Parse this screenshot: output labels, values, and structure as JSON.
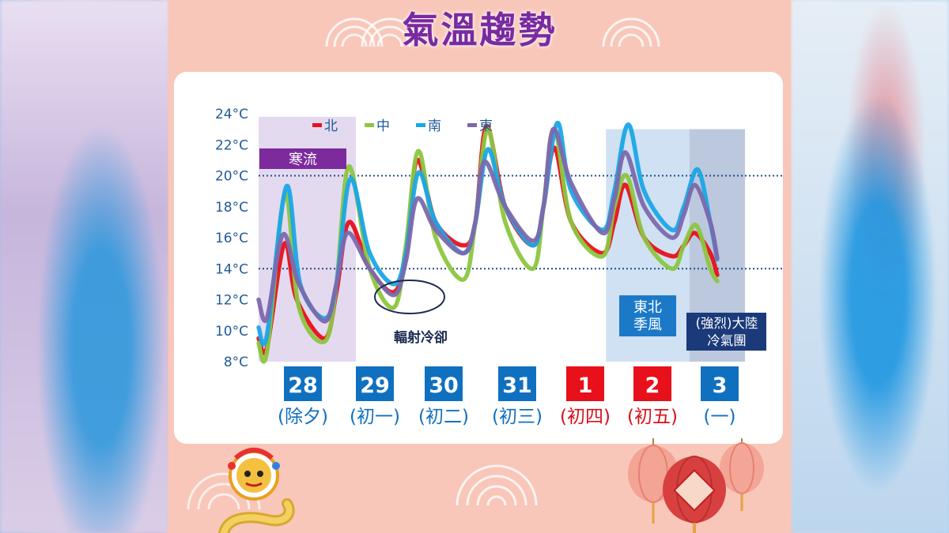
{
  "poster": {
    "title": "氣溫趨勢"
  },
  "colors": {
    "north": "#e8101a",
    "central": "#8cc63f",
    "south": "#1aa7e6",
    "east": "#7c68ad",
    "day_box_normal": "#1070c0",
    "day_box_holiday": "#e8101a",
    "lunar_normal": "#1070c0",
    "lunar_holiday": "#d8101a",
    "cold_wave_band": "#e4daf0",
    "monsoon_band": "#cfe1f2",
    "continental_band": "#bcc8de",
    "ref_line": "#1f4e8c"
  },
  "chart_data": {
    "type": "line",
    "yticks": [
      "8°C",
      "10°C",
      "12°C",
      "14°C",
      "16°C",
      "18°C",
      "20°C",
      "22°C",
      "24°C"
    ],
    "ylim": [
      8,
      24
    ],
    "xlim": [
      0,
      7
    ],
    "reference_lines": [
      20,
      14
    ],
    "legend": [
      "北",
      "中",
      "南",
      "東"
    ],
    "days": [
      {
        "date": "28",
        "lunar": "(除夕)",
        "holiday": false
      },
      {
        "date": "29",
        "lunar": "(初一)",
        "holiday": false
      },
      {
        "date": "30",
        "lunar": "(初二)",
        "holiday": false
      },
      {
        "date": "31",
        "lunar": "(初三)",
        "holiday": false
      },
      {
        "date": "1",
        "lunar": "(初四)",
        "holiday": true
      },
      {
        "date": "2",
        "lunar": "(初五)",
        "holiday": true
      },
      {
        "date": "3",
        "lunar": "(一)",
        "holiday": false
      }
    ],
    "series": [
      {
        "name": "北",
        "key": "north",
        "points": [
          [
            0,
            9.5
          ],
          [
            0.12,
            8.9
          ],
          [
            0.37,
            15.6
          ],
          [
            0.55,
            12
          ],
          [
            0.95,
            9.5
          ],
          [
            1.12,
            12.5
          ],
          [
            1.3,
            17
          ],
          [
            1.6,
            14
          ],
          [
            1.95,
            12.5
          ],
          [
            2.12,
            15
          ],
          [
            2.28,
            21
          ],
          [
            2.55,
            17
          ],
          [
            2.95,
            15.5
          ],
          [
            3.12,
            17
          ],
          [
            3.28,
            23.2
          ],
          [
            3.55,
            18
          ],
          [
            3.95,
            15.5
          ],
          [
            4.1,
            18
          ],
          [
            4.26,
            21.8
          ],
          [
            4.5,
            17
          ],
          [
            4.95,
            15
          ],
          [
            5.12,
            17
          ],
          [
            5.28,
            19.4
          ],
          [
            5.55,
            16
          ],
          [
            5.95,
            14.8
          ],
          [
            6.12,
            15.5
          ],
          [
            6.28,
            16.3
          ],
          [
            6.5,
            15
          ],
          [
            6.6,
            13.6
          ]
        ]
      },
      {
        "name": "中",
        "key": "central",
        "points": [
          [
            0,
            9.2
          ],
          [
            0.12,
            8.6
          ],
          [
            0.38,
            18.8
          ],
          [
            0.58,
            11.5
          ],
          [
            0.95,
            9.3
          ],
          [
            1.12,
            13
          ],
          [
            1.3,
            20.6
          ],
          [
            1.6,
            14
          ],
          [
            1.95,
            11.5
          ],
          [
            2.12,
            15.5
          ],
          [
            2.3,
            21.6
          ],
          [
            2.55,
            16
          ],
          [
            2.95,
            13.3
          ],
          [
            3.12,
            17
          ],
          [
            3.3,
            23
          ],
          [
            3.55,
            17
          ],
          [
            3.95,
            14
          ],
          [
            4.1,
            18
          ],
          [
            4.26,
            23
          ],
          [
            4.5,
            17
          ],
          [
            4.95,
            14.8
          ],
          [
            5.12,
            18
          ],
          [
            5.3,
            20
          ],
          [
            5.55,
            16
          ],
          [
            5.95,
            14
          ],
          [
            6.12,
            15.5
          ],
          [
            6.3,
            16.8
          ],
          [
            6.5,
            14
          ],
          [
            6.6,
            13.2
          ]
        ]
      },
      {
        "name": "南",
        "key": "south",
        "points": [
          [
            0,
            10.2
          ],
          [
            0.12,
            9.7
          ],
          [
            0.4,
            19.3
          ],
          [
            0.6,
            13
          ],
          [
            0.95,
            10.8
          ],
          [
            1.12,
            13
          ],
          [
            1.32,
            19.8
          ],
          [
            1.6,
            15
          ],
          [
            1.95,
            13
          ],
          [
            2.12,
            15
          ],
          [
            2.3,
            20.2
          ],
          [
            2.55,
            17
          ],
          [
            2.95,
            15
          ],
          [
            3.12,
            17
          ],
          [
            3.3,
            21.7
          ],
          [
            3.55,
            18
          ],
          [
            3.95,
            15.5
          ],
          [
            4.1,
            18
          ],
          [
            4.3,
            23.4
          ],
          [
            4.5,
            19
          ],
          [
            4.95,
            16.5
          ],
          [
            5.12,
            19
          ],
          [
            5.32,
            23.3
          ],
          [
            5.55,
            19
          ],
          [
            5.95,
            16.5
          ],
          [
            6.12,
            18
          ],
          [
            6.32,
            20.4
          ],
          [
            6.5,
            17
          ],
          [
            6.6,
            14.6
          ]
        ]
      },
      {
        "name": "東",
        "key": "east",
        "points": [
          [
            0,
            12
          ],
          [
            0.12,
            10.8
          ],
          [
            0.35,
            16.2
          ],
          [
            0.58,
            13
          ],
          [
            0.95,
            10.6
          ],
          [
            1.12,
            13
          ],
          [
            1.28,
            16.3
          ],
          [
            1.6,
            14
          ],
          [
            1.95,
            12.3
          ],
          [
            2.12,
            14.5
          ],
          [
            2.28,
            18.5
          ],
          [
            2.55,
            16.5
          ],
          [
            2.95,
            15
          ],
          [
            3.12,
            17
          ],
          [
            3.25,
            20.9
          ],
          [
            3.55,
            18
          ],
          [
            3.95,
            15.8
          ],
          [
            4.1,
            18
          ],
          [
            4.24,
            23
          ],
          [
            4.5,
            19.5
          ],
          [
            4.95,
            16.3
          ],
          [
            5.12,
            18.5
          ],
          [
            5.28,
            21.5
          ],
          [
            5.55,
            18
          ],
          [
            5.95,
            16
          ],
          [
            6.12,
            17.5
          ],
          [
            6.28,
            19.4
          ],
          [
            6.5,
            17
          ],
          [
            6.6,
            14.7
          ]
        ]
      }
    ],
    "regions": [
      {
        "label": "寒流",
        "kind": "cold_wave",
        "x": [
          0,
          1.4
        ]
      },
      {
        "label": "東北\n季風",
        "kind": "monsoon",
        "x": [
          5.0,
          6.2
        ]
      },
      {
        "label": "(強烈)大陸\n冷氣團",
        "kind": "continental",
        "x": [
          6.2,
          7.0
        ]
      }
    ],
    "annotations": [
      {
        "label": "輻射冷卻",
        "x": 1.95,
        "y": 12.4
      }
    ]
  }
}
